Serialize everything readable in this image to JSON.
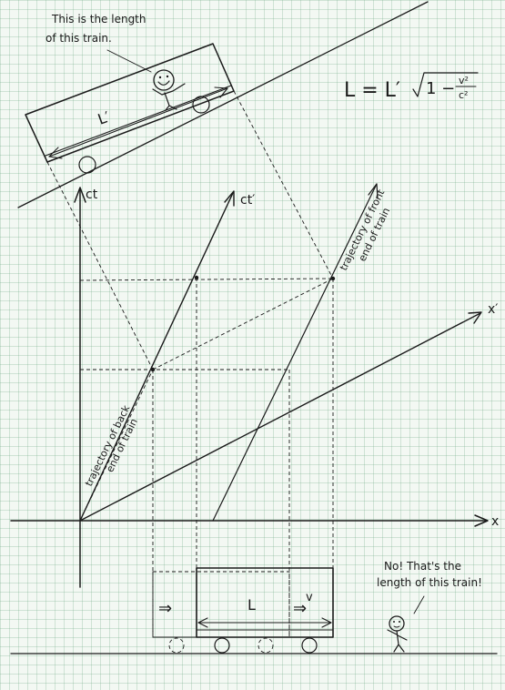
{
  "annotations": {
    "moving_observer": [
      "This is the length",
      "of this train."
    ],
    "ground_observer": [
      "No! That's the",
      "length of this train!"
    ]
  },
  "axes": {
    "ct": "ct",
    "ct_prime": "ct′",
    "x": "x",
    "x_prime": "x′"
  },
  "trajectories": {
    "back": [
      "trajectory of back",
      "end of train"
    ],
    "front": [
      "trajectory of front",
      "end of train"
    ]
  },
  "train_labels": {
    "proper_length": "L′",
    "contracted_length": "L",
    "velocity": "v",
    "velocity_arrow": "⇒"
  },
  "formula": {
    "lhs": "L = L′",
    "one_minus": "1 −",
    "numerator": "v²",
    "denominator": "c²"
  },
  "colors": {
    "ink": "#1a1a1a",
    "grid": "#a8cdb4",
    "paper": "#f3f8f3"
  }
}
